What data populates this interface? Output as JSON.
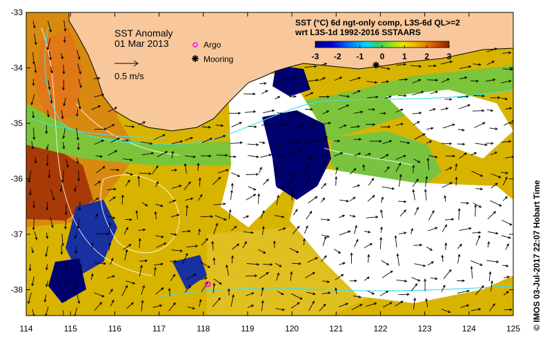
{
  "map": {
    "title": "SST Anomaly",
    "date": "01 Mar 2013",
    "scale_label": "0.5 m/s",
    "legend": {
      "argo_label": "Argo",
      "mooring_label": "Mooring"
    },
    "colorbar": {
      "title_line1": "SST (°C) 6d ngt-only comp, L3S-6d QL>=2",
      "title_line2": "wrt L3S-1d 1992-2016 SSTAARS",
      "ticks": [
        "-3",
        "-2",
        "-1",
        "0",
        "1",
        "2",
        "3"
      ],
      "range": [
        -3,
        3
      ]
    },
    "x_axis_ticks": [
      "114",
      "115",
      "116",
      "117",
      "118",
      "119",
      "120",
      "121",
      "122",
      "123",
      "124",
      "125"
    ],
    "y_axis_ticks": [
      "-33",
      "-34",
      "-35",
      "-36",
      "-37",
      "-38"
    ],
    "lon_range": [
      114,
      125
    ],
    "lat_range": [
      -38.5,
      -33
    ],
    "argo_float": {
      "lon": 118.1,
      "lat": -37.9
    },
    "mooring": {
      "lon": 121.9,
      "lat": -33.95
    },
    "copyright": "© IMOS 03-Jul-2017 22:07 Hobart Time",
    "colors": {
      "land": "#f8c89c",
      "no_data": "#ffffff",
      "strong_negative": "#00006e",
      "argo": "#ff00ff",
      "current_arrow": "#000000",
      "contour": "#ffffff",
      "stream": "#40e0f0"
    }
  }
}
